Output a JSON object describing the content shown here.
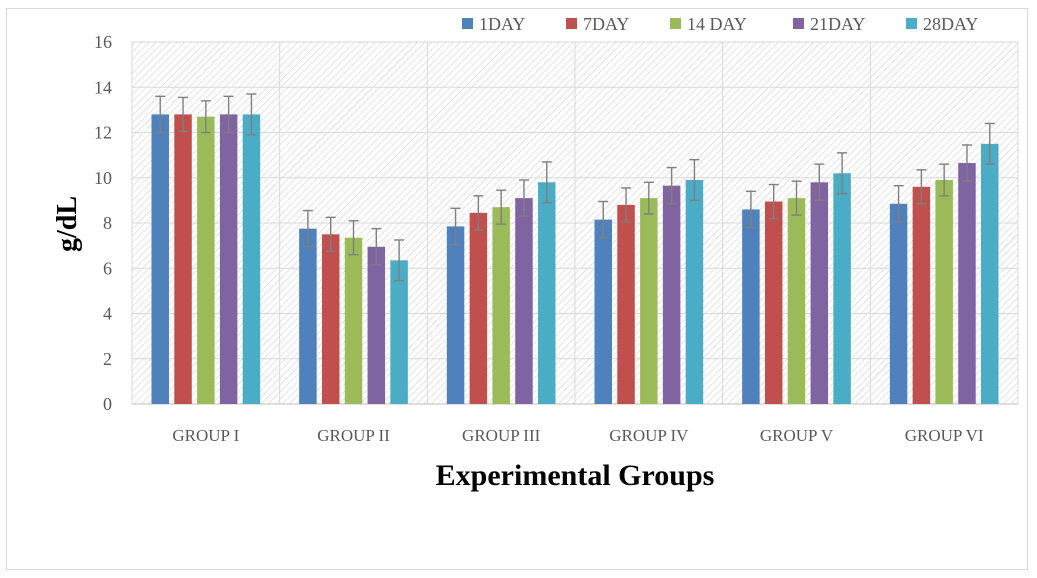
{
  "chart_data": {
    "type": "bar",
    "title": "",
    "xlabel": "Experimental Groups",
    "ylabel": "g/dL",
    "ylim": [
      0,
      16
    ],
    "yticks": [
      0,
      2,
      4,
      6,
      8,
      10,
      12,
      14,
      16
    ],
    "categories": [
      "GROUP I",
      "GROUP II",
      "GROUP III",
      "GROUP IV",
      "GROUP V",
      "GROUP VI"
    ],
    "grid": true,
    "legend_position": "top-right",
    "error_bars": true,
    "series": [
      {
        "name": "1DAY",
        "color": "#4f81bd",
        "values": [
          12.8,
          7.75,
          7.85,
          8.15,
          8.6,
          8.85
        ],
        "errors": [
          0.8,
          0.8,
          0.8,
          0.8,
          0.8,
          0.8
        ]
      },
      {
        "name": "7DAY",
        "color": "#c0504d",
        "values": [
          12.8,
          7.5,
          8.45,
          8.8,
          8.95,
          9.6
        ],
        "errors": [
          0.75,
          0.75,
          0.75,
          0.75,
          0.75,
          0.75
        ]
      },
      {
        "name": "14 DAY",
        "color": "#9bbb59",
        "values": [
          12.7,
          7.35,
          8.7,
          9.1,
          9.1,
          9.9
        ],
        "errors": [
          0.7,
          0.75,
          0.75,
          0.7,
          0.75,
          0.7
        ]
      },
      {
        "name": "21DAY",
        "color": "#8064a2",
        "values": [
          12.8,
          6.95,
          9.1,
          9.65,
          9.8,
          10.65
        ],
        "errors": [
          0.8,
          0.8,
          0.8,
          0.8,
          0.8,
          0.8
        ]
      },
      {
        "name": "28DAY",
        "color": "#4bacc6",
        "values": [
          12.8,
          6.35,
          9.8,
          9.9,
          10.2,
          11.5
        ],
        "errors": [
          0.9,
          0.9,
          0.9,
          0.9,
          0.9,
          0.9
        ]
      }
    ]
  }
}
